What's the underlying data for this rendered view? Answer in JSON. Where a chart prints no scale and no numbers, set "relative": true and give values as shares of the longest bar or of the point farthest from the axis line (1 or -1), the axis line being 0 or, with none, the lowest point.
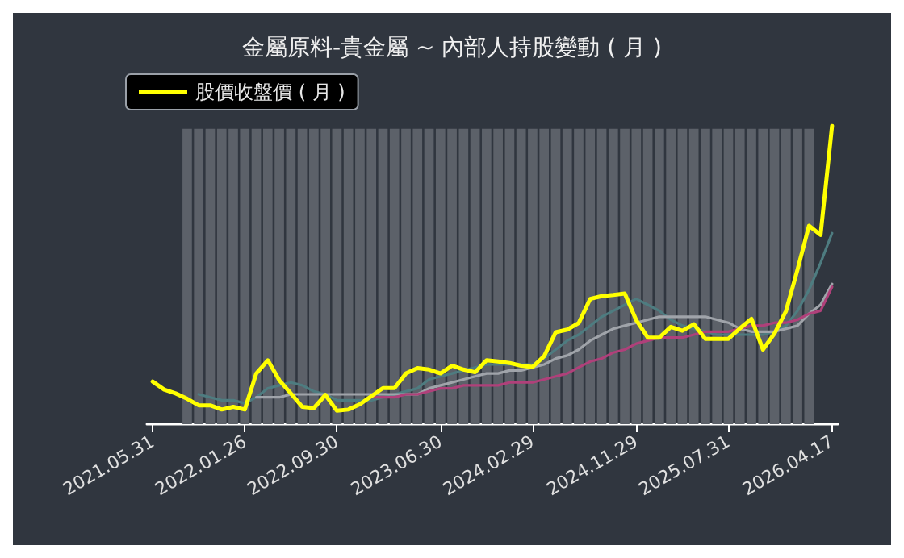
{
  "chart_data": {
    "type": "line",
    "title": "金屬原料-貴金屬 ~ 內部人持股變動 ( 月 )",
    "relative": true,
    "legend": "top left",
    "grid": false,
    "marker": "none",
    "categories": [
      "2021.05.31",
      null,
      null,
      null,
      null,
      null,
      null,
      null,
      "2022.01.26",
      null,
      null,
      null,
      null,
      null,
      null,
      null,
      "2022.09.30",
      null,
      null,
      null,
      null,
      null,
      null,
      null,
      null,
      "2023.06.30",
      null,
      null,
      null,
      null,
      null,
      null,
      null,
      "2024.02.29",
      null,
      null,
      null,
      null,
      null,
      null,
      null,
      null,
      "2024.11.29",
      null,
      null,
      null,
      null,
      null,
      null,
      null,
      "2025.07.31",
      null,
      null,
      null,
      null,
      null,
      null,
      null,
      null,
      "2026.04.17"
    ],
    "series": [
      {
        "type": "bar",
        "color": "#5c6169",
        "values": [
          null,
          null,
          null,
          0.99,
          0.99,
          0.99,
          0.99,
          0.99,
          0.99,
          0.99,
          0.99,
          0.99,
          0.99,
          0.99,
          0.99,
          0.99,
          0.99,
          0.99,
          0.99,
          0.99,
          0.99,
          0.99,
          0.99,
          0.99,
          0.99,
          0.99,
          0.99,
          0.99,
          0.99,
          0.99,
          0.99,
          0.99,
          0.99,
          0.99,
          0.99,
          0.99,
          0.99,
          0.99,
          0.99,
          0.99,
          0.99,
          0.99,
          0.99,
          0.99,
          0.99,
          0.99,
          0.99,
          0.99,
          0.99,
          0.99,
          0.99,
          0.99,
          0.99,
          0.99,
          0.99,
          0.99,
          0.99,
          0.99,
          null,
          null
        ]
      },
      {
        "color": "#4e7c80",
        "values": [
          null,
          null,
          null,
          null,
          0.1,
          0.09,
          0.08,
          0.08,
          0.07,
          0.09,
          0.12,
          0.13,
          0.14,
          0.13,
          0.11,
          0.1,
          0.08,
          0.08,
          0.08,
          0.08,
          0.09,
          0.1,
          0.11,
          0.12,
          0.15,
          0.16,
          0.17,
          0.18,
          0.19,
          0.2,
          0.2,
          0.2,
          0.2,
          0.2,
          0.22,
          0.25,
          0.28,
          0.3,
          0.33,
          0.36,
          0.38,
          0.4,
          0.42,
          0.4,
          0.38,
          0.35,
          0.33,
          0.32,
          0.31,
          0.3,
          0.3,
          0.3,
          0.3,
          0.3,
          0.31,
          0.33,
          0.38,
          0.45,
          0.54,
          0.64
        ]
      },
      {
        "color": "#a0a4aa",
        "values": [
          null,
          null,
          null,
          null,
          null,
          null,
          null,
          null,
          null,
          0.09,
          0.09,
          0.09,
          0.1,
          0.1,
          0.1,
          0.1,
          0.1,
          0.1,
          0.1,
          0.1,
          0.1,
          0.1,
          0.1,
          0.1,
          0.12,
          0.13,
          0.14,
          0.15,
          0.16,
          0.17,
          0.17,
          0.18,
          0.18,
          0.19,
          0.2,
          0.22,
          0.23,
          0.25,
          0.28,
          0.3,
          0.32,
          0.33,
          0.34,
          0.35,
          0.36,
          0.36,
          0.36,
          0.36,
          0.36,
          0.35,
          0.34,
          0.32,
          0.31,
          0.31,
          0.31,
          0.32,
          0.33,
          0.37,
          0.4,
          0.47
        ]
      },
      {
        "color": "#b0407a",
        "values": [
          null,
          null,
          null,
          null,
          null,
          null,
          null,
          null,
          null,
          null,
          null,
          null,
          null,
          null,
          null,
          null,
          null,
          null,
          null,
          0.09,
          0.09,
          0.09,
          0.1,
          0.1,
          0.11,
          0.12,
          0.12,
          0.13,
          0.13,
          0.13,
          0.13,
          0.14,
          0.14,
          0.14,
          0.15,
          0.16,
          0.17,
          0.19,
          0.21,
          0.22,
          0.24,
          0.25,
          0.27,
          0.28,
          0.29,
          0.29,
          0.29,
          0.3,
          0.31,
          0.31,
          0.31,
          0.32,
          0.33,
          0.33,
          0.34,
          0.34,
          0.35,
          0.37,
          0.38,
          0.46
        ]
      },
      {
        "name": "股價收盤價 ( 月 )",
        "color": "#ffff00",
        "values": [
          0.143,
          0.116,
          0.103,
          0.085,
          0.063,
          0.063,
          0.049,
          0.058,
          0.049,
          0.17,
          0.214,
          0.147,
          0.103,
          0.058,
          0.054,
          0.098,
          0.045,
          0.049,
          0.067,
          0.094,
          0.121,
          0.121,
          0.17,
          0.188,
          0.183,
          0.17,
          0.196,
          0.183,
          0.174,
          0.214,
          0.21,
          0.205,
          0.196,
          0.192,
          0.228,
          0.308,
          0.317,
          0.339,
          0.42,
          0.429,
          0.433,
          0.438,
          0.348,
          0.29,
          0.29,
          0.326,
          0.313,
          0.335,
          0.286,
          0.286,
          0.286,
          0.321,
          0.353,
          0.25,
          0.304,
          0.379,
          0.518,
          0.665,
          0.634,
          1
        ]
      }
    ]
  }
}
